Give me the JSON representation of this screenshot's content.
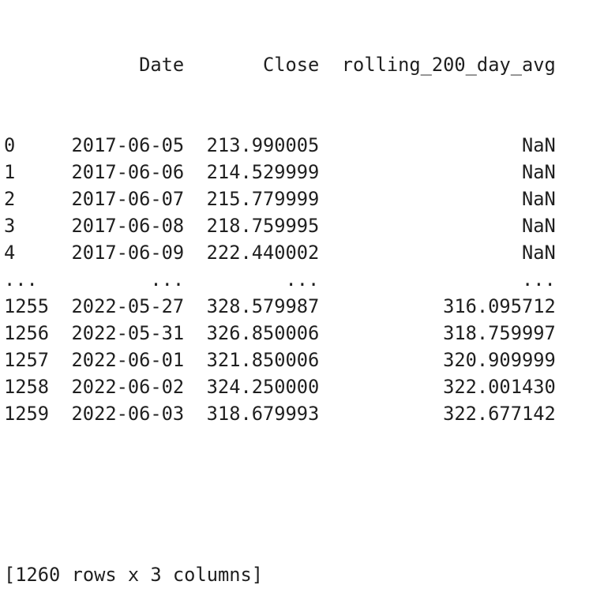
{
  "columns": [
    "",
    "Date",
    "Close",
    "rolling_200_day_avg"
  ],
  "rows": [
    [
      "0",
      "2017-06-05",
      "213.990005",
      "NaN"
    ],
    [
      "1",
      "2017-06-06",
      "214.529999",
      "NaN"
    ],
    [
      "2",
      "2017-06-07",
      "215.779999",
      "NaN"
    ],
    [
      "3",
      "2017-06-08",
      "218.759995",
      "NaN"
    ],
    [
      "4",
      "2017-06-09",
      "222.440002",
      "NaN"
    ],
    [
      "...",
      "...",
      "...",
      "..."
    ],
    [
      "1255",
      "2022-05-27",
      "328.579987",
      "316.095712"
    ],
    [
      "1256",
      "2022-05-31",
      "326.850006",
      "318.759997"
    ],
    [
      "1257",
      "2022-06-01",
      "321.850006",
      "320.909999"
    ],
    [
      "1258",
      "2022-06-02",
      "324.250000",
      "322.001430"
    ],
    [
      "1259",
      "2022-06-03",
      "318.679993",
      "322.677142"
    ]
  ],
  "footer": "[1260 rows x 3 columns]"
}
